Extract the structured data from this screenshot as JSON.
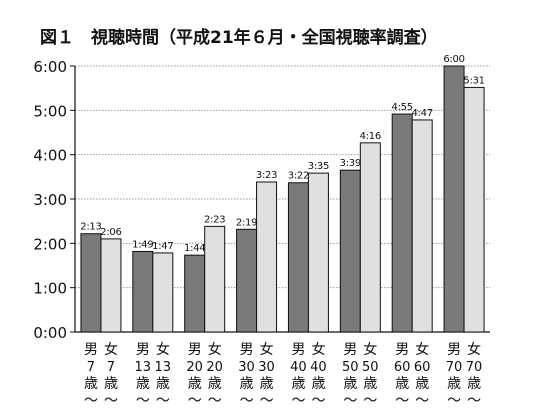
{
  "chart_data": {
    "type": "bar",
    "title": "図１　視聴時間（平成21年６月・全国視聴率調査）",
    "xlabel": "",
    "ylabel": "",
    "y_tick_labels": [
      "0:00",
      "1:00",
      "2:00",
      "3:00",
      "4:00",
      "5:00",
      "6:00"
    ],
    "ylim": [
      0,
      360
    ],
    "value_unit": "minutes",
    "grid": true,
    "legend": "none",
    "categories": [
      {
        "male": "男 7 歳 〜",
        "female": "女 7 歳 〜"
      },
      {
        "male": "男 13 歳 〜",
        "female": "女 13 歳 〜"
      },
      {
        "male": "男 20 歳 〜",
        "female": "女 20 歳 〜"
      },
      {
        "male": "男 30 歳 〜",
        "female": "女 30 歳 〜"
      },
      {
        "male": "男 40 歳 〜",
        "female": "女 40 歳 〜"
      },
      {
        "male": "男 50 歳 〜",
        "female": "女 50 歳 〜"
      },
      {
        "male": "男 60 歳 〜",
        "female": "女 60 歳 〜"
      },
      {
        "male": "男 70 歳 〜",
        "female": "女 70 歳 〜"
      }
    ],
    "series": [
      {
        "key": "male",
        "color": "#7a7a7a",
        "values": [
          133,
          109,
          104,
          139,
          202,
          219,
          295,
          360
        ],
        "labels": [
          "2:13",
          "1:49",
          "1:44",
          "2:19",
          "3:22",
          "3:39",
          "4:55",
          "6:00"
        ]
      },
      {
        "key": "female",
        "color": "#e0e0e0",
        "values": [
          126,
          107,
          143,
          203,
          215,
          256,
          287,
          331
        ],
        "labels": [
          "2:06",
          "1:47",
          "2:23",
          "3:23",
          "3:35",
          "4:16",
          "4:47",
          "5:31"
        ]
      }
    ]
  }
}
